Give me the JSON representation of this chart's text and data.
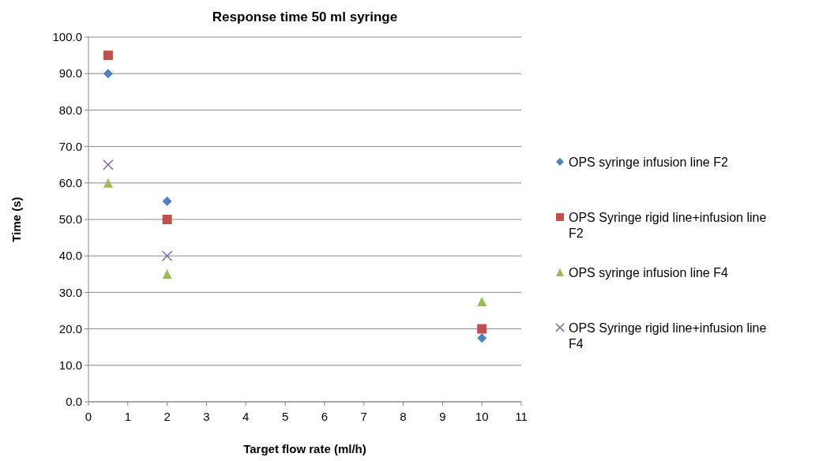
{
  "chart_data": {
    "type": "scatter",
    "title": "Response time 50 ml  syringe",
    "xlabel": "Target flow rate (ml/h)",
    "ylabel": "Time (s)",
    "xlim": [
      0,
      11
    ],
    "xticks": [
      0,
      1,
      2,
      3,
      4,
      5,
      6,
      7,
      8,
      9,
      10,
      11
    ],
    "ylim": [
      0,
      100
    ],
    "yticks": [
      {
        "value": 0,
        "label": "0.0"
      },
      {
        "value": 10,
        "label": "10.0"
      },
      {
        "value": 20,
        "label": "20.0"
      },
      {
        "value": 30,
        "label": "30.0"
      },
      {
        "value": 40,
        "label": "40.0"
      },
      {
        "value": 50,
        "label": "50.0"
      },
      {
        "value": 60,
        "label": "60.0"
      },
      {
        "value": 70,
        "label": "70.0"
      },
      {
        "value": 80,
        "label": "80.0"
      },
      {
        "value": 90,
        "label": "90.0"
      },
      {
        "value": 100,
        "label": "100.0"
      }
    ],
    "grid": "y",
    "legend": "right",
    "series": [
      {
        "name": "OPS syringe infusion line F2",
        "color": "#4f81bd",
        "marker": "diamond",
        "x": [
          0.5,
          2,
          10
        ],
        "values": [
          90,
          55,
          17.5
        ]
      },
      {
        "name": "OPS Syringe rigid line+infusion line F2",
        "color": "#c0504d",
        "marker": "square",
        "x": [
          0.5,
          2,
          10
        ],
        "values": [
          95,
          50,
          20
        ]
      },
      {
        "name": "OPS syringe infusion line F4",
        "color": "#9bbb59",
        "marker": "triangle",
        "x": [
          0.5,
          2,
          10
        ],
        "values": [
          60,
          35,
          27.5
        ]
      },
      {
        "name": "OPS Syringe rigid line+infusion line F4",
        "color": "#8064a2",
        "marker": "cross",
        "x": [
          0.5,
          2
        ],
        "values": [
          65,
          40
        ]
      }
    ]
  }
}
